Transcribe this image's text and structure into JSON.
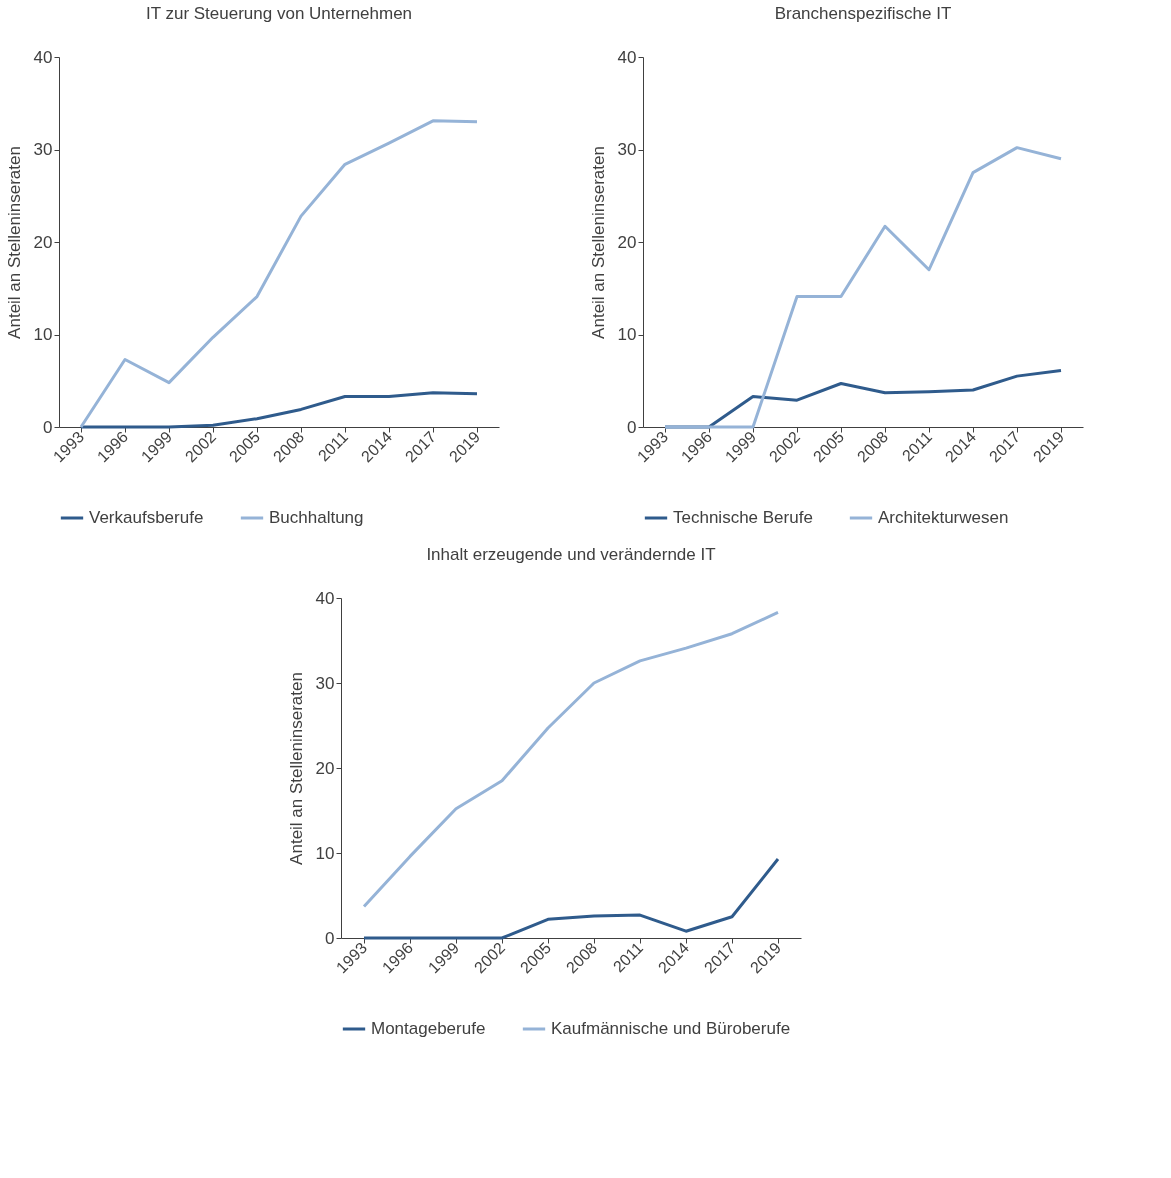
{
  "chart_data": [
    {
      "type": "line",
      "title": "IT zur Steuerung von Unternehmen",
      "ylabel": "Anteil an Stelleninseraten",
      "categories": [
        "1993",
        "1996",
        "1999",
        "2002",
        "2005",
        "2008",
        "2011",
        "2014",
        "2017",
        "2019"
      ],
      "ylim": [
        0,
        40
      ],
      "yticks": [
        0,
        10,
        20,
        30,
        40
      ],
      "grid": false,
      "legend": "bottom",
      "marker": "none",
      "series": [
        {
          "name": "Verkaufsberufe",
          "color": "#2f5b8c",
          "values": [
            0,
            0,
            0,
            0.2,
            0.9,
            1.9,
            3.3,
            3.3,
            3.7,
            3.6
          ]
        },
        {
          "name": "Buchhaltung",
          "color": "#95b3d7",
          "values": [
            0,
            7.3,
            4.8,
            9.7,
            14.1,
            22.8,
            28.4,
            30.7,
            33.1,
            33.0
          ]
        }
      ]
    },
    {
      "type": "line",
      "title": "Branchenspezifische IT",
      "ylabel": "Anteil an Stelleninseraten",
      "categories": [
        "1993",
        "1996",
        "1999",
        "2002",
        "2005",
        "2008",
        "2011",
        "2014",
        "2017",
        "2019"
      ],
      "ylim": [
        0,
        40
      ],
      "yticks": [
        0,
        10,
        20,
        30,
        40
      ],
      "grid": false,
      "legend": "bottom",
      "marker": "none",
      "series": [
        {
          "name": "Technische Berufe",
          "color": "#2f5b8c",
          "values": [
            0,
            0,
            3.3,
            2.9,
            4.7,
            3.7,
            3.8,
            4.0,
            5.5,
            6.1
          ]
        },
        {
          "name": "Architekturwesen",
          "color": "#95b3d7",
          "values": [
            0,
            0,
            0,
            14.1,
            14.1,
            21.7,
            17.0,
            27.5,
            30.2,
            29.0
          ]
        }
      ]
    },
    {
      "type": "line",
      "title": "Inhalt erzeugende und verändernde IT",
      "ylabel": "Anteil an Stelleninseraten",
      "categories": [
        "1993",
        "1996",
        "1999",
        "2002",
        "2005",
        "2008",
        "2011",
        "2014",
        "2017",
        "2019"
      ],
      "ylim": [
        0,
        40
      ],
      "yticks": [
        0,
        10,
        20,
        30,
        40
      ],
      "grid": false,
      "legend": "bottom",
      "marker": "none",
      "series": [
        {
          "name": "Montageberufe",
          "color": "#2f5b8c",
          "values": [
            0,
            0,
            0,
            0,
            2.2,
            2.6,
            2.7,
            0.8,
            2.5,
            9.3
          ]
        },
        {
          "name": "Kaufmännische und Büroberufe",
          "color": "#95b3d7",
          "values": [
            3.7,
            9.6,
            15.2,
            18.5,
            24.7,
            30.0,
            32.6,
            34.1,
            35.8,
            38.3
          ]
        }
      ]
    }
  ]
}
